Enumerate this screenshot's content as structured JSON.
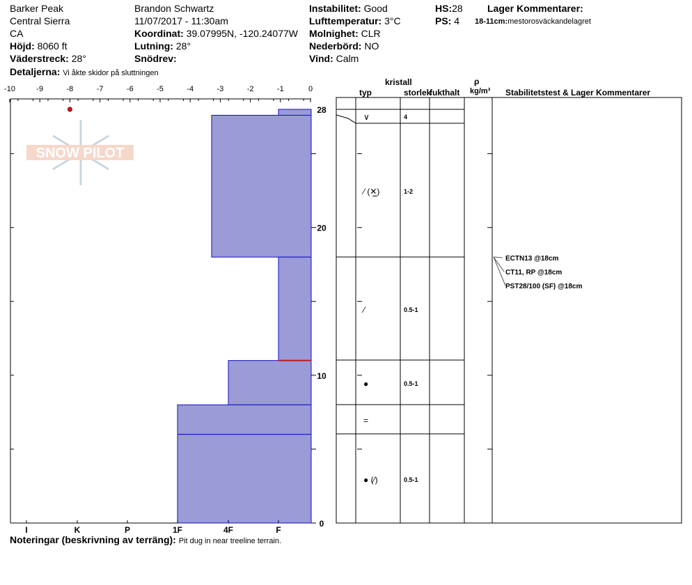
{
  "header": {
    "location": "Barker Peak",
    "region": "Central Sierra",
    "state": "CA",
    "elevation_label": "Höjd:",
    "elevation_value": "8060 ft",
    "aspect_label": "Väderstreck:",
    "aspect_value": "28°",
    "details_label": "Detaljerna:",
    "details_value": "Vi åkte skidor på sluttningen",
    "observer": "Brandon Schwartz",
    "datetime": "11/07/2017 - 11:30am",
    "coords_label": "Koordinat:",
    "coords_value": "39.07995N, -120.24077W",
    "slope_label": "Lutning:",
    "slope_value": "28°",
    "wind_loading_label": "Snödrev:",
    "wind_loading_value": "",
    "instability_label": "Instabilitet:",
    "instability_value": "Good",
    "air_temp_label": "Lufttemperatur:",
    "air_temp_value": "3°C",
    "sky_label": "Molnighet:",
    "sky_value": "CLR",
    "precip_label": "Nederbörd:",
    "precip_value": "NO",
    "wind_label": "Vind:",
    "wind_value": "Calm",
    "hs_label": "HS:",
    "hs_value": "28",
    "ps_label": "PS:",
    "ps_value": "4",
    "layer_comments_label": "Lager Kommentarer:",
    "layer_comment_range": "18-11cm:",
    "layer_comment_text": "mestorosväckandelagret"
  },
  "columns": {
    "crystal": "kristall",
    "type": "typ",
    "size": "storlek",
    "moisture": "fukthalt",
    "rho": "ρ",
    "density_unit": "kg/m³",
    "stability": "Stabilitetstest & Lager Kommentarer"
  },
  "footer": {
    "notes_label": "Noteringar (beskrivning av terräng):",
    "notes_value": "Pit dug in near treeline terrain."
  },
  "logo_text": "SNOW PILOT",
  "chart_data": {
    "type": "bar",
    "orientation": "horizontal",
    "title": "",
    "x_axis_ticks": [
      "-10",
      "-9",
      "-8",
      "-7",
      "-6",
      "-5",
      "-4",
      "-3",
      "-2",
      "-1",
      "0"
    ],
    "x_range": [
      -10,
      0
    ],
    "hardness_ticks": [
      "I",
      "K",
      "P",
      "1F",
      "4F",
      "F"
    ],
    "y_range": [
      0,
      28
    ],
    "y_ticks": [
      "0",
      "10",
      "20",
      "28"
    ],
    "layers": [
      {
        "top": 28,
        "bottom": 27.6,
        "hardness": "F",
        "crystal": "∨",
        "size": "4"
      },
      {
        "top": 27.6,
        "bottom": 18,
        "hardness": "4F-",
        "crystal": "⁄ (✕̲)",
        "size": "1-2"
      },
      {
        "top": 18,
        "bottom": 11,
        "hardness": "F",
        "crystal": "⁄",
        "size": "0.5-1"
      },
      {
        "top": 11,
        "bottom": 8,
        "hardness": "4F",
        "crystal": "●",
        "size": "0.5-1"
      },
      {
        "top": 8,
        "bottom": 6,
        "hardness": "1F",
        "crystal": "=",
        "size": ""
      },
      {
        "top": 6,
        "bottom": 0,
        "hardness": "1F",
        "crystal": "● (⁄)",
        "size": "0.5-1"
      }
    ],
    "temperature_points": [
      {
        "depth": 28,
        "temp": -8
      }
    ],
    "critical_layer_depth": 11,
    "stability_tests": [
      "ECTN13 @18cm",
      "CT11, RP @18cm",
      "PST28/100 (SF) @18cm"
    ],
    "colors": {
      "bar_fill": "#9b9bd7",
      "bar_line": "#1010c0",
      "temp_point": "#d01818",
      "critical": "#c01818"
    }
  }
}
